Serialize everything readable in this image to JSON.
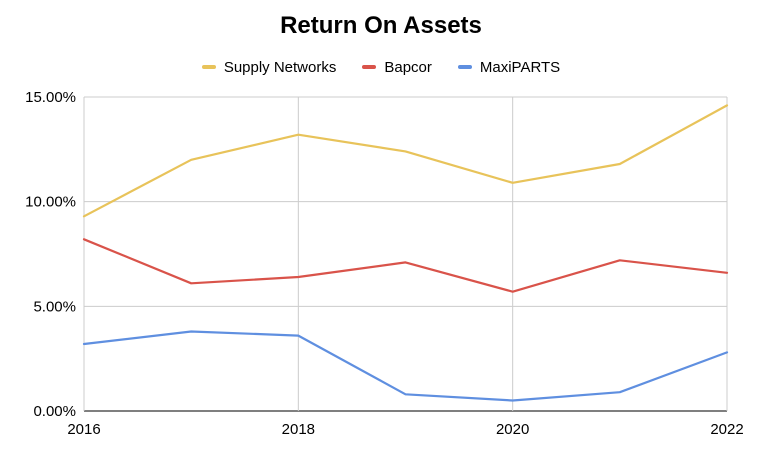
{
  "chart_data": {
    "type": "line",
    "title": "Return On Assets",
    "xlabel": "",
    "ylabel": "",
    "x": [
      2016,
      2017,
      2018,
      2019,
      2020,
      2021,
      2022
    ],
    "x_tick_labels": [
      "2016",
      "2018",
      "2020",
      "2022"
    ],
    "x_ticks": [
      2016,
      2018,
      2020,
      2022
    ],
    "y_tick_labels": [
      "0.00%",
      "5.00%",
      "10.00%",
      "15.00%"
    ],
    "y_ticks": [
      0,
      5,
      10,
      15
    ],
    "ylim": [
      0,
      15
    ],
    "xlim": [
      2016,
      2022
    ],
    "grid": true,
    "legend_position": "top",
    "series": [
      {
        "name": "Supply Networks",
        "color": "#e8c35a",
        "values": [
          9.3,
          12.0,
          13.2,
          12.4,
          10.9,
          11.8,
          14.6
        ]
      },
      {
        "name": "Bapcor",
        "color": "#d9534a",
        "values": [
          8.2,
          6.1,
          6.4,
          7.1,
          5.7,
          7.2,
          6.6
        ]
      },
      {
        "name": "MaxiPARTS",
        "color": "#5f8fe0",
        "values": [
          3.2,
          3.8,
          3.6,
          0.8,
          0.5,
          0.9,
          2.8
        ]
      }
    ]
  }
}
